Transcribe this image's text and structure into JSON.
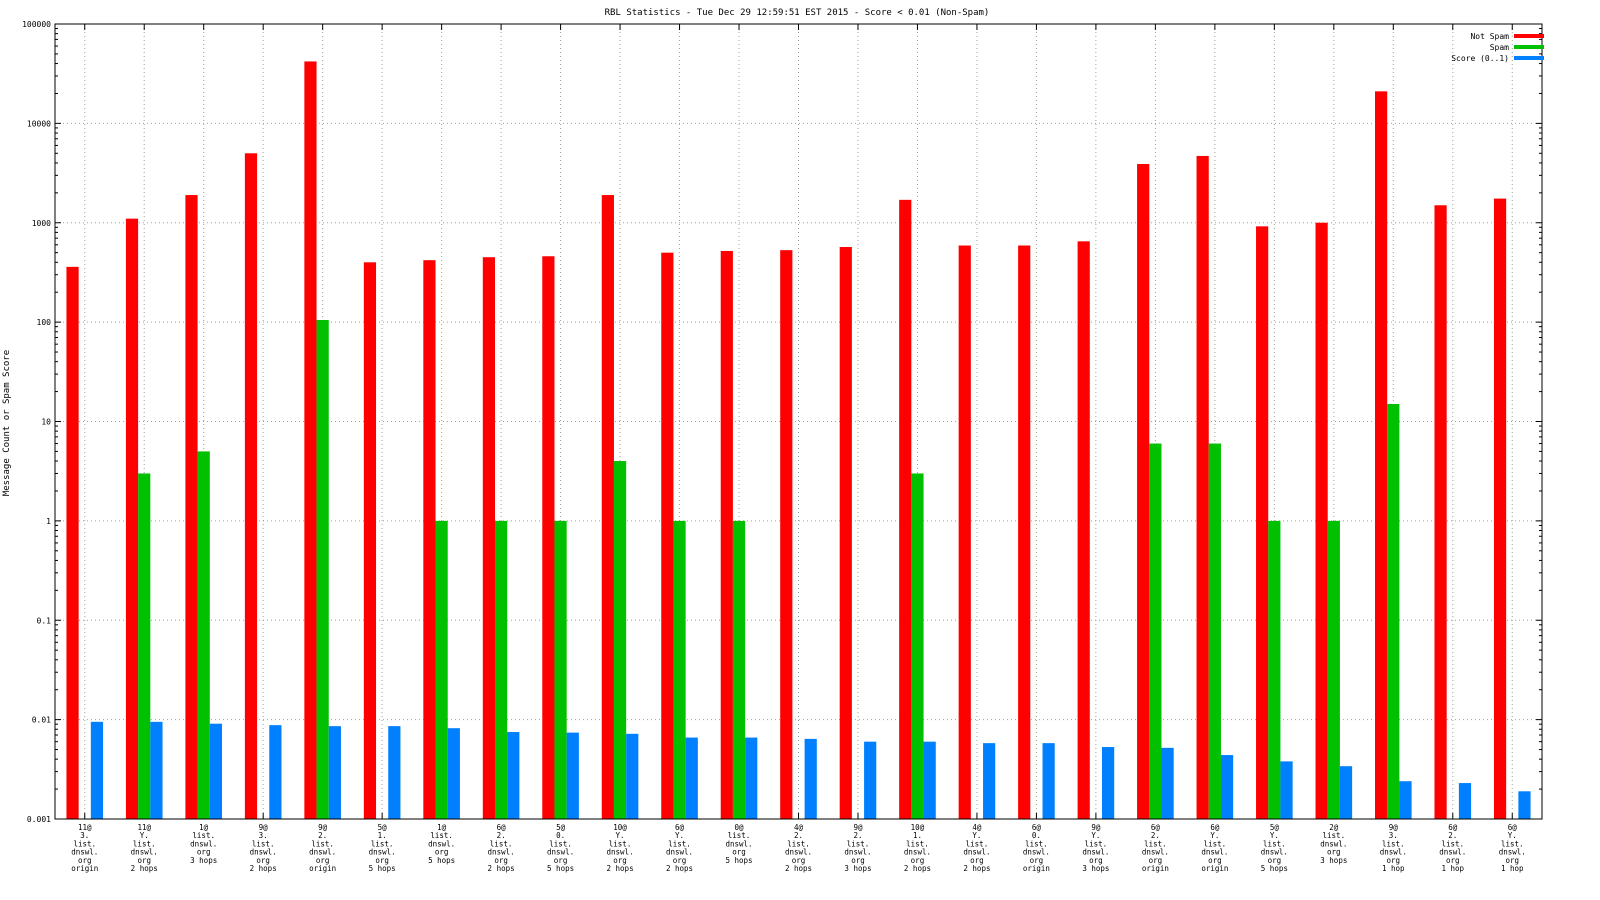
{
  "chart_data": {
    "type": "bar",
    "title": "RBL Statistics - Tue Dec 29 12:59:51 EST 2015 - Score < 0.01 (Non-Spam)",
    "xlabel": "",
    "ylabel": "Message Count or Spam Score",
    "yscale": "log",
    "ylim": [
      0.001,
      100000
    ],
    "yticks": [
      "100000",
      "10000",
      "1000",
      "100",
      "10",
      "1",
      "0.1",
      "0.01",
      "0.001"
    ],
    "grid": true,
    "legend_position": "top-right",
    "categories": [
      [
        "11@",
        "3.",
        "list.",
        "dnswl.",
        "org",
        "origin"
      ],
      [
        "11@",
        "Y.",
        "list.",
        "dnswl.",
        "org",
        "2 hops"
      ],
      [
        "1@",
        "list.",
        "dnswl.",
        "org",
        "3 hops"
      ],
      [
        "9@",
        "3.",
        "list.",
        "dnswl.",
        "org",
        "2 hops"
      ],
      [
        "9@",
        "2.",
        "list.",
        "dnswl.",
        "org",
        "origin"
      ],
      [
        "5@",
        "1.",
        "list.",
        "dnswl.",
        "org",
        "5 hops"
      ],
      [
        "1@",
        "list.",
        "dnswl.",
        "org",
        "5 hops"
      ],
      [
        "6@",
        "2.",
        "list.",
        "dnswl.",
        "org",
        "2 hops"
      ],
      [
        "5@",
        "0.",
        "list.",
        "dnswl.",
        "org",
        "5 hops"
      ],
      [
        "10@",
        "Y.",
        "list.",
        "dnswl.",
        "org",
        "2 hops"
      ],
      [
        "6@",
        "Y.",
        "list.",
        "dnswl.",
        "org",
        "2 hops"
      ],
      [
        "0@",
        "list.",
        "dnswl.",
        "org",
        "5 hops"
      ],
      [
        "4@",
        "2.",
        "list.",
        "dnswl.",
        "org",
        "2 hops"
      ],
      [
        "9@",
        "2.",
        "list.",
        "dnswl.",
        "org",
        "3 hops"
      ],
      [
        "10@",
        "1.",
        "list.",
        "dnswl.",
        "org",
        "2 hops"
      ],
      [
        "4@",
        "Y.",
        "list.",
        "dnswl.",
        "org",
        "2 hops"
      ],
      [
        "6@",
        "0.",
        "list.",
        "dnswl.",
        "org",
        "origin"
      ],
      [
        "9@",
        "Y.",
        "list.",
        "dnswl.",
        "org",
        "3 hops"
      ],
      [
        "6@",
        "2.",
        "list.",
        "dnswl.",
        "org",
        "origin"
      ],
      [
        "6@",
        "Y.",
        "list.",
        "dnswl.",
        "org",
        "origin"
      ],
      [
        "5@",
        "Y.",
        "list.",
        "dnswl.",
        "org",
        "5 hops"
      ],
      [
        "2@",
        "list.",
        "dnswl.",
        "org",
        "3 hops"
      ],
      [
        "9@",
        "3.",
        "list.",
        "dnswl.",
        "org",
        "1 hop"
      ],
      [
        "6@",
        "2.",
        "list.",
        "dnswl.",
        "org",
        "1 hop"
      ],
      [
        "6@",
        "Y.",
        "list.",
        "dnswl.",
        "org",
        "1 hop"
      ]
    ],
    "series": [
      {
        "name": "Not Spam",
        "color": "#ff0000",
        "values": [
          360,
          1100,
          1900,
          5000,
          42000,
          400,
          420,
          450,
          460,
          1900,
          500,
          520,
          530,
          570,
          1700,
          590,
          590,
          650,
          3900,
          4700,
          920,
          1000,
          21000,
          1500,
          1750
        ]
      },
      {
        "name": "Spam",
        "color": "#00c000",
        "values": [
          null,
          3,
          5,
          null,
          105,
          null,
          1,
          1,
          1,
          4,
          1,
          1,
          null,
          null,
          3,
          null,
          null,
          null,
          6,
          6,
          1,
          1,
          15,
          null,
          null
        ]
      },
      {
        "name": "Score (0..1)",
        "color": "#0080ff",
        "values": [
          0.0095,
          0.0095,
          0.0091,
          0.0088,
          0.0086,
          0.0086,
          0.0082,
          0.0075,
          0.0074,
          0.0072,
          0.0066,
          0.0066,
          0.0064,
          0.006,
          0.006,
          0.0058,
          0.0058,
          0.0053,
          0.0052,
          0.0044,
          0.0038,
          0.0034,
          0.0024,
          0.0023,
          0.0019
        ]
      }
    ]
  }
}
